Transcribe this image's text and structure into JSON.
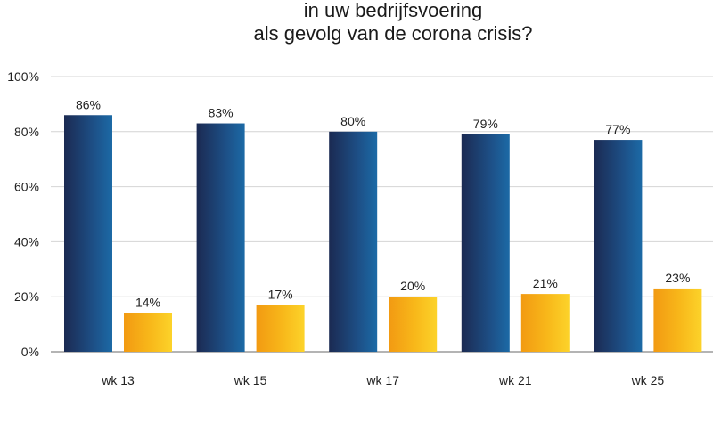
{
  "chart_data": {
    "type": "bar",
    "title_lines": [
      "in uw bedrijfsvoering",
      "als gevolg van de corona crisis?"
    ],
    "categories": [
      "wk 13",
      "wk 15",
      "wk 17",
      "wk 21",
      "wk 25"
    ],
    "series": [
      {
        "values": [
          86,
          83,
          80,
          79,
          77
        ],
        "labels": [
          "86%",
          "83%",
          "80%",
          "79%",
          "77%"
        ],
        "color": "#1f3b6b"
      },
      {
        "values": [
          14,
          17,
          20,
          21,
          23
        ],
        "labels": [
          "14%",
          "17%",
          "20%",
          "21%",
          "23%"
        ],
        "color": "#f7b21c"
      }
    ],
    "yticks": [
      "0%",
      "20%",
      "40%",
      "60%",
      "80%",
      "100%"
    ],
    "ylim": [
      0,
      100
    ],
    "grid": true,
    "legend": "none"
  }
}
